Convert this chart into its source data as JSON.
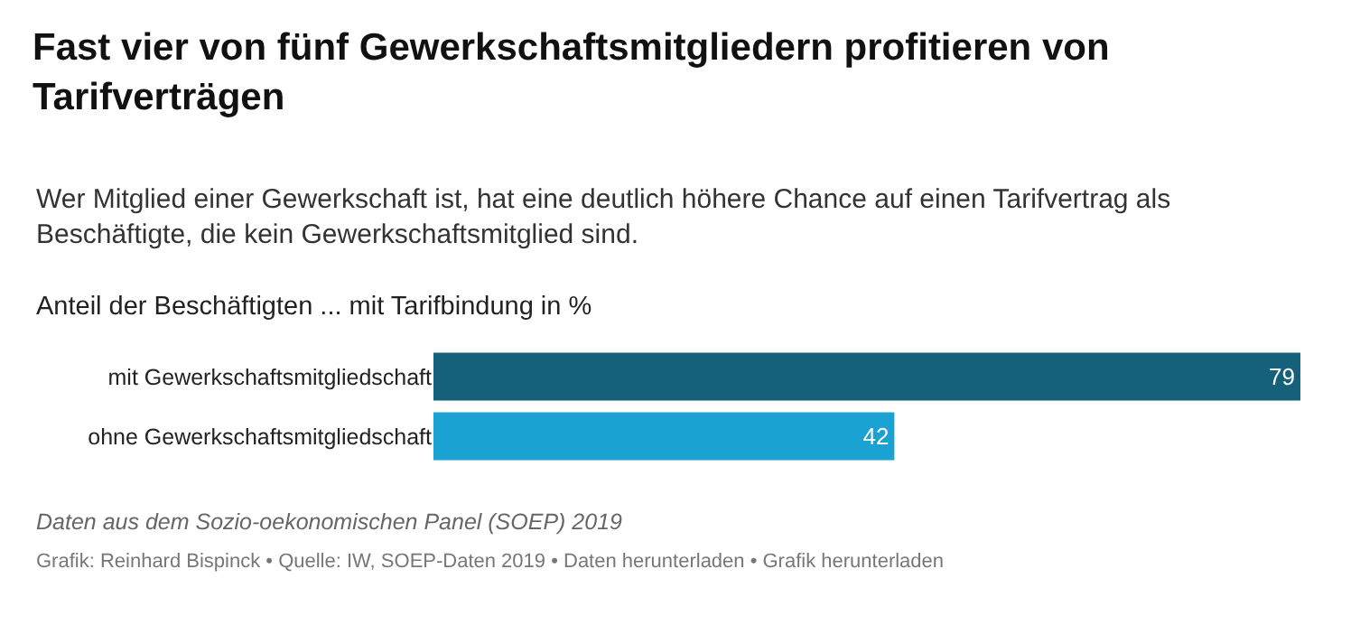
{
  "chart_data": {
    "type": "bar",
    "orientation": "horizontal",
    "title": "Fast vier von fünf Gewerkschaftsmitgliedern profitieren von Tarifverträgen",
    "subtitle": "Wer Mitglied einer Gewerkschaft ist, hat eine deutlich höhere Chance auf einen Tarifvertrag als Beschäftigte, die kein Gewerkschaftsmitglied sind.",
    "categories": [
      "mit Gewerkschaftsmitgliedschaft",
      "ohne Gewerkschaftsmitgliedschaft"
    ],
    "values": [
      79,
      42
    ],
    "colors": [
      "#15607a",
      "#1aa2d2"
    ],
    "data_labels": true,
    "annotations": [
      "Anteil der Beschäftigten ... mit Tarifbindung in %",
      "Daten aus dem Sozio-oekonomischen Panel (SOEP) 2019",
      "Grafik: Reinhard Bispinck • Quelle: IW, SOEP-Daten 2019 • Daten herunterladen • Grafik herunterladen"
    ]
  }
}
